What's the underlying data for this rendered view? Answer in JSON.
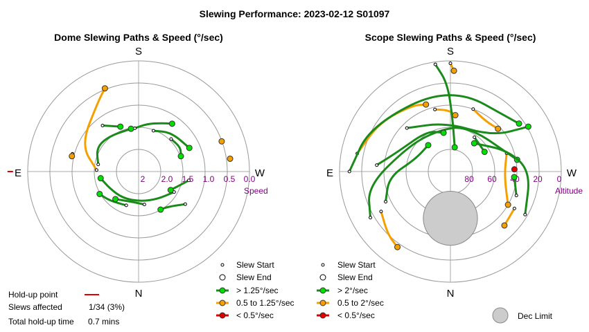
{
  "title": "Slewing Performance: 2023-02-12 S01097",
  "colors": {
    "fast": "#00e000",
    "fast_path": "#1a8a1a",
    "mid": "#f5a000",
    "slow": "#e00000",
    "ring": "#999999",
    "tick": "#800080",
    "holdup": "#e00000",
    "dec_limit": "#cccccc"
  },
  "charts": [
    {
      "id": "dome",
      "subtitle": "Dome Slewing Paths & Speed (°/sec)",
      "compass": {
        "S": "S",
        "N": "N",
        "E": "E",
        "W": "W"
      },
      "radial_title": "Speed",
      "radial_ticks": [
        "2",
        "2.0",
        "1.5",
        "1.0",
        "0.5",
        "0.0"
      ],
      "legend": [
        {
          "key": "start",
          "label": "Slew Start"
        },
        {
          "key": "end",
          "label": "Slew End"
        },
        {
          "key": "fast",
          "label": "> 1.25°/sec"
        },
        {
          "key": "mid",
          "label": "0.5 to 1.25°/sec"
        },
        {
          "key": "slow",
          "label": "< 0.5°/sec"
        }
      ]
    },
    {
      "id": "scope",
      "subtitle": "Scope Slewing Paths & Speed (°/sec)",
      "compass": {
        "S": "S",
        "N": "N",
        "E": "E",
        "W": "W"
      },
      "radial_title": "Altitude",
      "radial_ticks": [
        "80",
        "60",
        "40",
        "20",
        "0"
      ],
      "legend": [
        {
          "key": "start",
          "label": "Slew Start"
        },
        {
          "key": "end",
          "label": "Slew End"
        },
        {
          "key": "fast",
          "label": "> 2°/sec"
        },
        {
          "key": "mid",
          "label": "0.5 to 2°/sec"
        },
        {
          "key": "slow",
          "label": "< 0.5°/sec"
        }
      ],
      "dec_limit_label": "Dec Limit"
    }
  ],
  "holdup": {
    "point_label": "Hold-up point",
    "slews_label": "Slews affected",
    "slews_value": "1/34 (3%)",
    "time_label": "Total hold-up time",
    "time_value": "0.7 mins"
  },
  "chart_data": [
    {
      "type": "scatter",
      "title": "Dome Slewing Paths & Speed (°/sec)",
      "projection": "polar",
      "radial_label": "Speed",
      "radial_ticks": [
        2.0,
        1.5,
        1.0,
        0.5,
        0.0
      ],
      "note": "radius = speed (°/sec), 2.0 at centre",
      "slews": [
        {
          "speed": "mid",
          "points": [
            [
              92,
              1.38
            ],
            [
              115,
              0.95
            ],
            [
              150,
              0.6
            ],
            [
              158,
              0.42
            ]
          ]
        },
        {
          "speed": "mid",
          "points": [
            [
              105,
              0.85
            ],
            [
              103,
              0.85
            ]
          ]
        },
        {
          "speed": "mid",
          "points": [
            [
              250,
              0.45
            ]
          ]
        },
        {
          "speed": "mid",
          "points": [
            [
              262,
              0.37
            ]
          ]
        },
        {
          "speed": "fast",
          "points": [
            [
              142,
              1.05
            ],
            [
              158,
              1.25
            ]
          ]
        },
        {
          "speed": "fast",
          "points": [
            [
              175,
              1.35
            ],
            [
              190,
              1.25
            ],
            [
              205,
              1.15
            ],
            [
              215,
              1.05
            ]
          ]
        },
        {
          "speed": "fast",
          "points": [
            [
              225,
              1.3
            ],
            [
              240,
              1.25
            ],
            [
              250,
              1.32
            ]
          ]
        },
        {
          "speed": "fast",
          "points": [
            [
              305,
              1.08
            ],
            [
              320,
              1.3
            ],
            [
              330,
              1.34
            ]
          ]
        },
        {
          "speed": "fast",
          "points": [
            [
              300,
              1.4
            ],
            [
              325,
              1.55
            ],
            [
              355,
              1.62
            ],
            [
              30,
              1.6
            ],
            [
              60,
              1.55
            ],
            [
              80,
              1.45
            ]
          ]
        },
        {
          "speed": "fast",
          "points": [
            [
              280,
              1.2
            ],
            [
              300,
              1.48
            ]
          ]
        },
        {
          "speed": "fast",
          "points": [
            [
              20,
              1.5
            ],
            [
              45,
              1.4
            ],
            [
              60,
              1.32
            ]
          ]
        },
        {
          "speed": "fast",
          "points": [
            [
              100,
              1.4
            ],
            [
              120,
              1.25
            ],
            [
              140,
              1.3
            ],
            [
              170,
              1.35
            ]
          ]
        },
        {
          "speed": "fast",
          "points": [
            [
              200,
              1.35
            ],
            [
              220,
              1.2
            ],
            [
              245,
              1.1
            ]
          ]
        },
        {
          "speed": "fast",
          "points": [
            [
              350,
              1.55
            ],
            [
              10,
              1.6
            ],
            [
              40,
              1.5
            ]
          ]
        }
      ],
      "holdup_points": [
        [
          90,
          -0.35
        ]
      ]
    },
    {
      "type": "scatter",
      "title": "Scope Slewing Paths & Speed (°/sec)",
      "projection": "polar",
      "radial_label": "Altitude",
      "radial_ticks": [
        80,
        60,
        40,
        20,
        0
      ],
      "note": "radius = 90 - altitude (°)",
      "dec_limit": {
        "azimuth": 0,
        "altitude": 52,
        "radius_deg": 22
      },
      "slews": [
        {
          "speed": "mid",
          "points": [
            [
              101,
              13
            ],
            [
              125,
              20
            ],
            [
              150,
              28
            ],
            [
              160,
              32
            ]
          ]
        },
        {
          "speed": "mid",
          "points": [
            [
              166,
              38
            ],
            [
              178,
              40
            ],
            [
              185,
              44
            ]
          ]
        },
        {
          "speed": "mid",
          "points": [
            [
              180,
              2
            ],
            [
              182,
              8
            ]
          ]
        },
        {
          "speed": "mid",
          "points": [
            [
              200,
              36
            ],
            [
              215,
              40
            ],
            [
              228,
              38
            ]
          ]
        },
        {
          "speed": "mid",
          "points": [
            [
              252,
              42
            ],
            [
              275,
              46
            ],
            [
              300,
              36
            ]
          ]
        },
        {
          "speed": "mid",
          "points": [
            [
              60,
              25
            ],
            [
              45,
              18
            ],
            [
              35,
              15
            ]
          ]
        },
        {
          "speed": "mid",
          "points": [
            [
              300,
              30
            ],
            [
              315,
              28
            ]
          ]
        },
        {
          "speed": "fast",
          "points": [
            [
              172,
              2
            ],
            [
              178,
              18
            ],
            [
              182,
              45
            ],
            [
              190,
              70
            ]
          ]
        },
        {
          "speed": "fast",
          "points": [
            [
              135,
              40
            ],
            [
              175,
              50
            ],
            [
              230,
              45
            ],
            [
              240,
              17
            ]
          ]
        },
        {
          "speed": "fast",
          "points": [
            [
              90,
              8
            ],
            [
              120,
              15
            ],
            [
              180,
              20
            ],
            [
              235,
              22
            ]
          ]
        },
        {
          "speed": "fast",
          "points": [
            [
              60,
              15
            ],
            [
              80,
              22
            ],
            [
              120,
              50
            ],
            [
              160,
              55
            ],
            [
              200,
              50
            ],
            [
              260,
              35
            ]
          ]
        },
        {
          "speed": "fast",
          "points": [
            [
              300,
              20
            ],
            [
              270,
              25
            ],
            [
              250,
              40
            ],
            [
              220,
              60
            ]
          ]
        },
        {
          "speed": "fast",
          "points": [
            [
              95,
              30
            ],
            [
              110,
              44
            ],
            [
              150,
              52
            ],
            [
              170,
              58
            ]
          ]
        },
        {
          "speed": "fast",
          "points": [
            [
              65,
              32
            ],
            [
              85,
              40
            ],
            [
              110,
              60
            ],
            [
              140,
              62
            ]
          ]
        },
        {
          "speed": "fast",
          "points": [
            [
              290,
              33
            ],
            [
              275,
              38
            ]
          ]
        },
        {
          "speed": "fast",
          "points": [
            [
              215,
              56
            ],
            [
              240,
              58
            ]
          ]
        }
      ],
      "slow_points": [
        [
          268,
          38
        ]
      ]
    }
  ]
}
